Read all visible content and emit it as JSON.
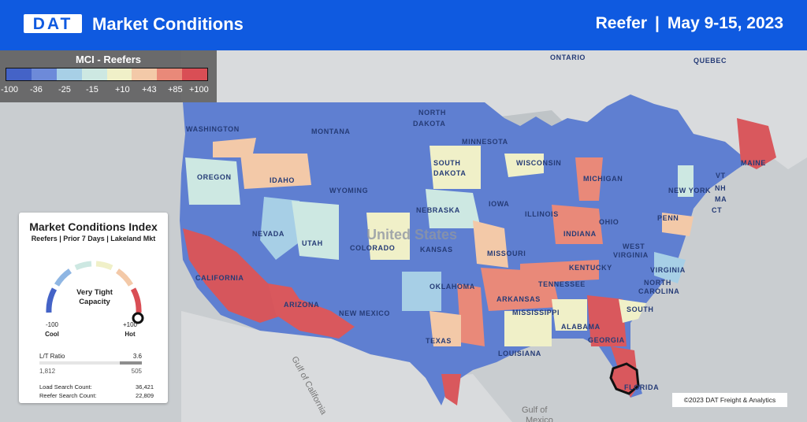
{
  "header": {
    "logo": "DAT",
    "title": "Market Conditions",
    "equipment": "Reefer",
    "separator": "|",
    "date_range": "May 9-15, 2023"
  },
  "legend": {
    "title": "MCI - Reefers",
    "colors": [
      "#4463c7",
      "#6d8ad9",
      "#a7cfe6",
      "#cde8e2",
      "#f0f0c8",
      "#f3c9a8",
      "#e98979",
      "#d94e55"
    ],
    "ticks": [
      "-100",
      "-36",
      "-25",
      "-15",
      "+10",
      "+43",
      "+85",
      "+100"
    ]
  },
  "mci_card": {
    "title": "Market Conditions Index",
    "subtitle": "Reefers | Prior 7 Days | Lakeland Mkt",
    "status_line1": "Very Tight",
    "status_line2": "Capacity",
    "min_value": "-100",
    "min_label": "Cool",
    "max_value": "+100",
    "max_label": "Hot",
    "gauge_level": 100,
    "lt_label": "L/T Ratio",
    "lt_value": "3.6",
    "loads_left": "1,812",
    "trucks_right": "505",
    "load_search_label": "Load Search Count:",
    "load_search_value": "36,421",
    "reefer_search_label": "Reefer Search Count:",
    "reefer_search_value": "22,809"
  },
  "map_labels": {
    "ontario": "ONTARIO",
    "quebec": "QUEBEC",
    "washington": "WASHINGTON",
    "montana": "MONTANA",
    "north_dakota_1": "NORTH",
    "north_dakota_2": "DAKOTA",
    "minnesota": "MINNESOTA",
    "south_dakota_1": "SOUTH",
    "south_dakota_2": "DAKOTA",
    "wisconsin": "WISCONSIN",
    "michigan": "MICHIGAN",
    "maine": "MAINE",
    "oregon": "OREGON",
    "idaho": "IDAHO",
    "wyoming": "WYOMING",
    "nebraska": "NEBRASKA",
    "iowa": "IOWA",
    "new_york": "NEW YORK",
    "vt": "VT",
    "nh": "NH",
    "ma": "MA",
    "ct": "CT",
    "nevada": "NEVADA",
    "utah": "UTAH",
    "colorado": "COLORADO",
    "kansas": "KANSAS",
    "missouri": "MISSOURI",
    "illinois": "ILLINOIS",
    "indiana": "INDIANA",
    "ohio": "OHIO",
    "penn": "PENN",
    "west_virginia_1": "WEST",
    "west_virginia_2": "VIRGINIA",
    "virginia": "VIRGINIA",
    "kentucky": "KENTUCKY",
    "california": "CALIFORNIA",
    "arizona": "ARIZONA",
    "new_mexico": "NEW MEXICO",
    "oklahoma": "OKLAHOMA",
    "arkansas": "ARKANSAS",
    "tennessee": "TENNESSEE",
    "north_carolina_1": "NORTH",
    "north_carolina_2": "CAROLINA",
    "south": "SOUTH",
    "mississippi": "MISSISSIPPI",
    "alabama": "ALABAMA",
    "georgia": "GEORGIA",
    "texas": "TEXAS",
    "louisiana": "LOUISIANA",
    "florida": "FLORIDA",
    "united_states": "United States",
    "gulf_of_california": "Gulf of California",
    "gulf_of_mexico_1": "Gulf of",
    "gulf_of_mexico_2": "Mexico"
  },
  "copyright": "©2023 DAT Freight & Analytics"
}
